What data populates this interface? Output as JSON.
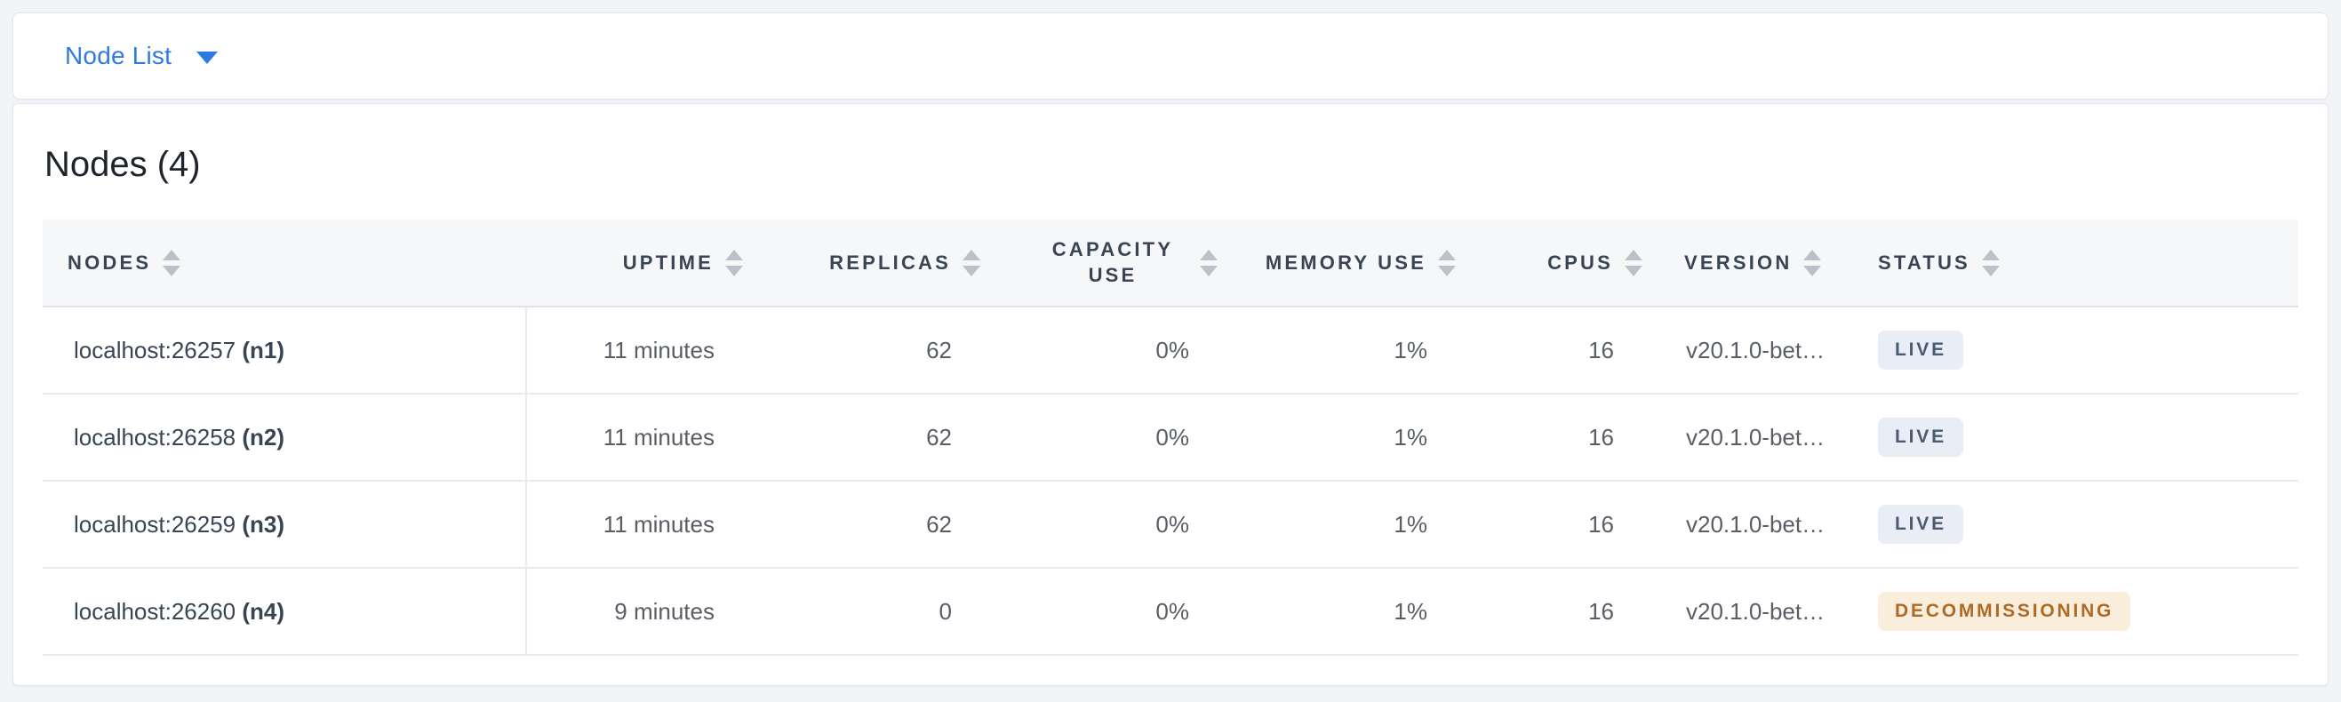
{
  "toolbar": {
    "dropdown_label": "Node List"
  },
  "main": {
    "title": "Nodes (4)",
    "table": {
      "columns": [
        {
          "key": "nodes",
          "label": "NODES",
          "align": "left"
        },
        {
          "key": "uptime",
          "label": "UPTIME",
          "align": "right"
        },
        {
          "key": "replicas",
          "label": "REPLICAS",
          "align": "right"
        },
        {
          "key": "capacity",
          "label": "CAPACITY USE",
          "align": "right"
        },
        {
          "key": "memory",
          "label": "MEMORY USE",
          "align": "right"
        },
        {
          "key": "cpus",
          "label": "CPUS",
          "align": "right"
        },
        {
          "key": "version",
          "label": "VERSION",
          "align": "left"
        },
        {
          "key": "status",
          "label": "STATUS",
          "align": "left"
        }
      ],
      "rows": [
        {
          "address": "localhost:26257",
          "id": "(n1)",
          "uptime": "11 minutes",
          "replicas": "62",
          "capacity": "0%",
          "memory": "1%",
          "cpus": "16",
          "version": "v20.1.0-bet…",
          "status": "LIVE",
          "status_type": "live"
        },
        {
          "address": "localhost:26258",
          "id": "(n2)",
          "uptime": "11 minutes",
          "replicas": "62",
          "capacity": "0%",
          "memory": "1%",
          "cpus": "16",
          "version": "v20.1.0-bet…",
          "status": "LIVE",
          "status_type": "live"
        },
        {
          "address": "localhost:26259",
          "id": "(n3)",
          "uptime": "11 minutes",
          "replicas": "62",
          "capacity": "0%",
          "memory": "1%",
          "cpus": "16",
          "version": "v20.1.0-bet…",
          "status": "LIVE",
          "status_type": "live"
        },
        {
          "address": "localhost:26260",
          "id": "(n4)",
          "uptime": "9 minutes",
          "replicas": "0",
          "capacity": "0%",
          "memory": "1%",
          "cpus": "16",
          "version": "v20.1.0-bet…",
          "status": "DECOMMISSIONING",
          "status_type": "decommissioning"
        }
      ]
    }
  },
  "icons": {
    "dropdown_caret": "caret-down-icon",
    "sort": "sort-arrows-icon"
  },
  "colors": {
    "page_background": "#f2f4f8",
    "card_background": "#ffffff",
    "card_border": "#e3e6ec",
    "accent_blue": "#2e7ae5",
    "title_text": "#20242d",
    "header_text": "#394455",
    "header_background": "#f6f7f9",
    "header_border": "#dfe3e9",
    "row_border": "#e7ebf1",
    "cell_text": "#595e66",
    "node_text": "#394455",
    "sort_icon": "#bcc0c8",
    "badge_live_bg": "#e9edf5",
    "badge_live_text": "#4c5a72",
    "badge_decommissioning_bg": "#f9eedb",
    "badge_decommissioning_text": "#ad6a26"
  }
}
